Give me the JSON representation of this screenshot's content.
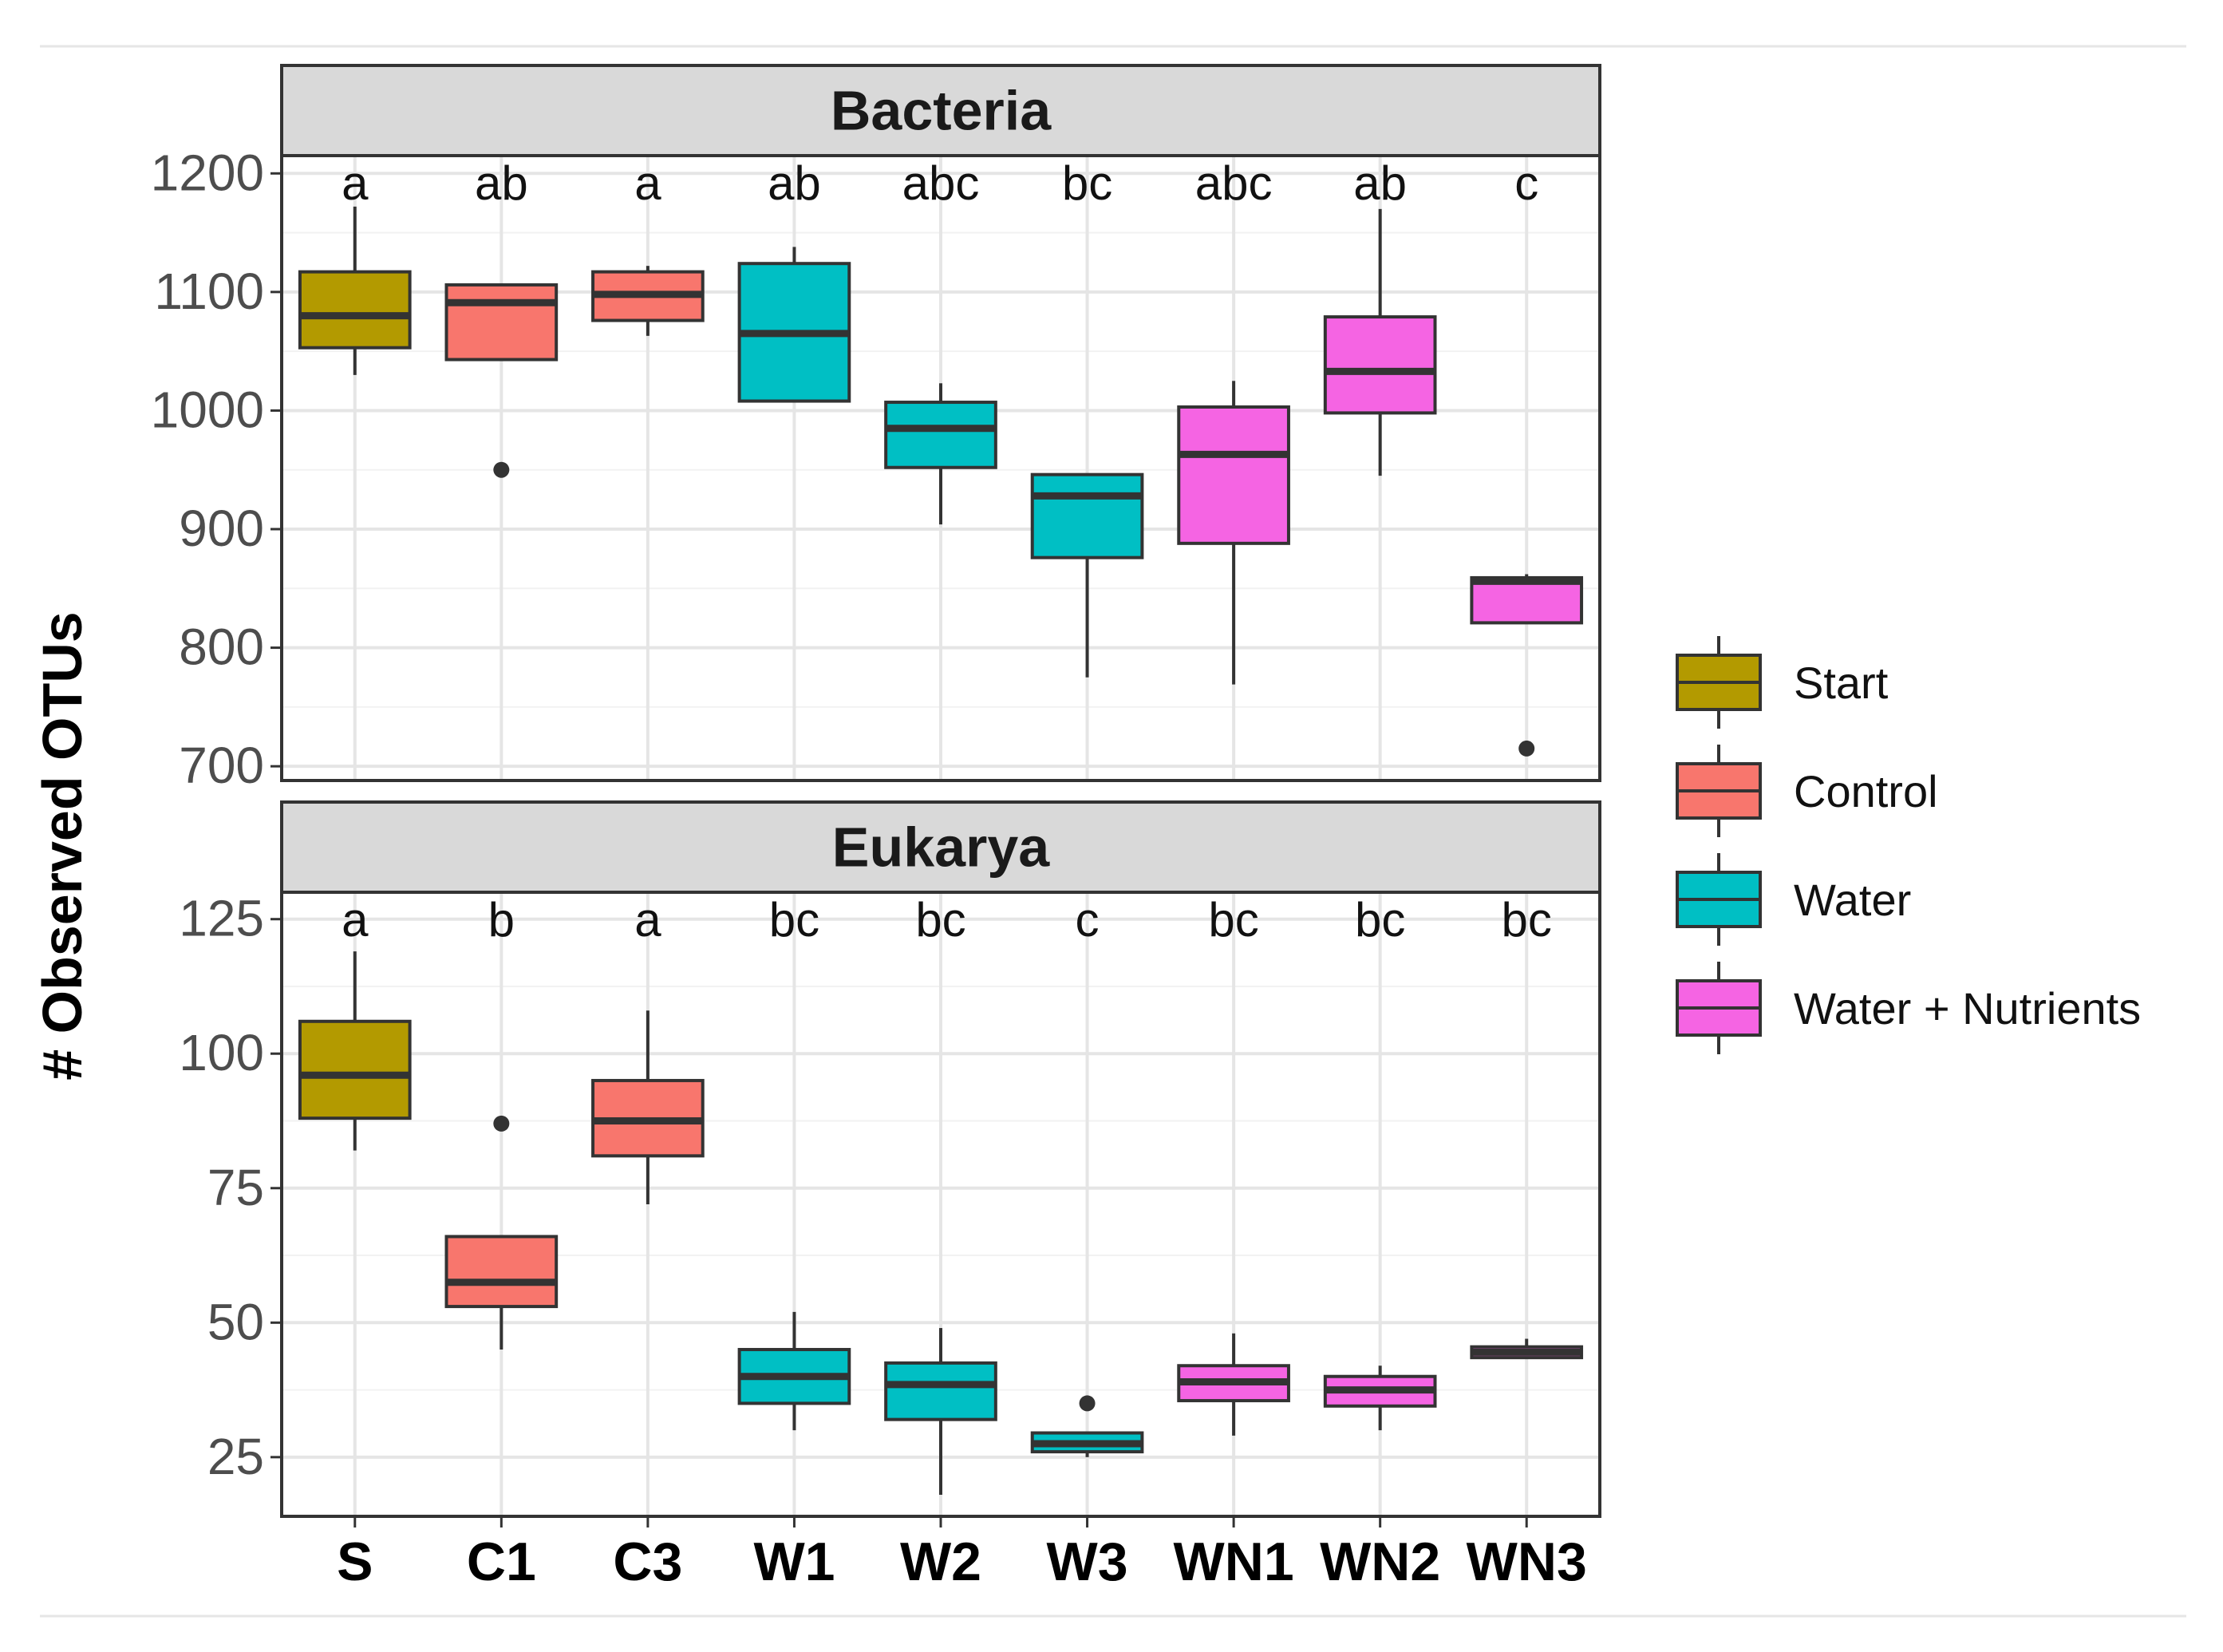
{
  "chart_data": {
    "type": "boxplot",
    "y_axis_label": "# Observed OTUs",
    "categories": [
      "S",
      "C1",
      "C3",
      "W1",
      "W2",
      "W3",
      "WN1",
      "WN2",
      "WN3"
    ],
    "treatment_of_category": [
      "Start",
      "Control",
      "Control",
      "Water",
      "Water",
      "Water",
      "Water + Nutrients",
      "Water + Nutrients",
      "Water + Nutrients"
    ],
    "legend": [
      {
        "label": "Start",
        "color": "#B39A00"
      },
      {
        "label": "Control",
        "color": "#F8766D"
      },
      {
        "label": "Water",
        "color": "#00BFC4"
      },
      {
        "label": "Water + Nutrients",
        "color": "#F564E3"
      }
    ],
    "panels": [
      {
        "title": "Bacteria",
        "ylim": [
          688,
          1215
        ],
        "yticks": [
          700,
          800,
          900,
          1000,
          1100,
          1200
        ],
        "letters": [
          "a",
          "ab",
          "a",
          "ab",
          "abc",
          "bc",
          "abc",
          "ab",
          "c"
        ],
        "boxes": [
          {
            "lw": 1030,
            "q1": 1053,
            "median": 1080,
            "q3": 1117,
            "uw": 1172,
            "outliers": []
          },
          {
            "lw": 1043,
            "q1": 1043,
            "median": 1091,
            "q3": 1106,
            "uw": 1106,
            "outliers": [
              950
            ]
          },
          {
            "lw": 1063,
            "q1": 1076,
            "median": 1098,
            "q3": 1117,
            "uw": 1122,
            "outliers": []
          },
          {
            "lw": 1008,
            "q1": 1008,
            "median": 1065,
            "q3": 1124,
            "uw": 1138,
            "outliers": []
          },
          {
            "lw": 904,
            "q1": 952,
            "median": 985,
            "q3": 1007,
            "uw": 1023,
            "outliers": []
          },
          {
            "lw": 775,
            "q1": 876,
            "median": 928,
            "q3": 946,
            "uw": 946,
            "outliers": []
          },
          {
            "lw": 769,
            "q1": 888,
            "median": 963,
            "q3": 1003,
            "uw": 1025,
            "outliers": []
          },
          {
            "lw": 945,
            "q1": 998,
            "median": 1033,
            "q3": 1079,
            "uw": 1170,
            "outliers": []
          },
          {
            "lw": 821,
            "q1": 821,
            "median": 856,
            "q3": 859,
            "uw": 862,
            "outliers": [
              715
            ]
          }
        ]
      },
      {
        "title": "Eukarya",
        "ylim": [
          14,
          130
        ],
        "yticks": [
          25,
          50,
          75,
          100,
          125
        ],
        "letters": [
          "a",
          "b",
          "a",
          "bc",
          "bc",
          "c",
          "bc",
          "bc",
          "bc"
        ],
        "boxes": [
          {
            "lw": 82,
            "q1": 88,
            "median": 96,
            "q3": 106,
            "uw": 119,
            "outliers": []
          },
          {
            "lw": 45,
            "q1": 53,
            "median": 57.5,
            "q3": 66,
            "uw": 66,
            "outliers": [
              87
            ]
          },
          {
            "lw": 72,
            "q1": 81,
            "median": 87.5,
            "q3": 95,
            "uw": 108,
            "outliers": []
          },
          {
            "lw": 30,
            "q1": 35,
            "median": 40,
            "q3": 45,
            "uw": 52,
            "outliers": []
          },
          {
            "lw": 18,
            "q1": 32,
            "median": 38.5,
            "q3": 42.5,
            "uw": 49,
            "outliers": []
          },
          {
            "lw": 25,
            "q1": 26,
            "median": 27.5,
            "q3": 29.5,
            "uw": 29.5,
            "outliers": [
              35
            ]
          },
          {
            "lw": 29,
            "q1": 35.5,
            "median": 39,
            "q3": 42,
            "uw": 48,
            "outliers": []
          },
          {
            "lw": 30,
            "q1": 34.5,
            "median": 37.5,
            "q3": 40,
            "uw": 42,
            "outliers": []
          },
          {
            "lw": 43.5,
            "q1": 43.5,
            "median": 44.5,
            "q3": 45.5,
            "uw": 47,
            "outliers": []
          }
        ]
      }
    ]
  }
}
